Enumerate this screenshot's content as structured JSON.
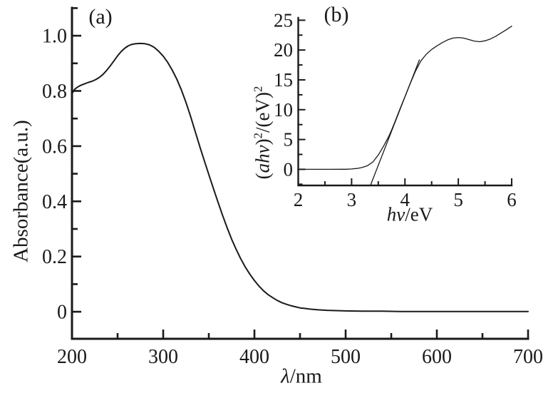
{
  "page": {
    "background": "#ffffff",
    "ink": "#1a1a1a"
  },
  "panels": {
    "main": {
      "tag": "(a)",
      "y_axis_label": "Absorbance(a.u.)",
      "x_axis_label_var": "λ",
      "x_axis_label_rest": "/nm"
    },
    "inset": {
      "tag": "(b)",
      "y_label_open": "(",
      "y_label_var": "ahv",
      "y_label_close": ")",
      "y_label_sup1": "2",
      "y_label_mid": "/(eV)",
      "y_label_sup2": "2",
      "x_axis_label_var": "hv",
      "x_axis_label_rest": "/eV"
    }
  },
  "chart_data": [
    {
      "id": "main",
      "type": "line",
      "title": "(a) UV-Vis absorbance spectrum",
      "xlabel": "λ/nm",
      "ylabel": "Absorbance(a.u.)",
      "xlim": [
        200,
        700
      ],
      "ylim_axis": [
        -0.098,
        1.101
      ],
      "grid": false,
      "legend": "none",
      "x_major_ticks": [
        200,
        300,
        400,
        500,
        600,
        700
      ],
      "x_major_labels": [
        "200",
        "300",
        "400",
        "500",
        "600",
        "700"
      ],
      "x_minor_ticks": [
        250,
        350,
        450,
        550,
        650
      ],
      "y_major_ticks": [
        0,
        0.2,
        0.4,
        0.6,
        0.8,
        1.0
      ],
      "y_major_labels": [
        "0",
        "0.2",
        "0.4",
        "0.6",
        "0.8",
        "1.0"
      ],
      "y_minor_ticks": [
        0.1,
        0.3,
        0.5,
        0.7,
        0.9,
        1.1
      ],
      "series": [
        {
          "name": "absorbance-curve",
          "points": [
            [
              200,
              0.79
            ],
            [
              203,
              0.806
            ],
            [
              206,
              0.814
            ],
            [
              210,
              0.821
            ],
            [
              214,
              0.826
            ],
            [
              218,
              0.831
            ],
            [
              222,
              0.835
            ],
            [
              226,
              0.841
            ],
            [
              230,
              0.849
            ],
            [
              234,
              0.86
            ],
            [
              238,
              0.874
            ],
            [
              242,
              0.891
            ],
            [
              246,
              0.909
            ],
            [
              250,
              0.927
            ],
            [
              254,
              0.943
            ],
            [
              258,
              0.955
            ],
            [
              262,
              0.964
            ],
            [
              266,
              0.969
            ],
            [
              270,
              0.971
            ],
            [
              275,
              0.972
            ],
            [
              280,
              0.971
            ],
            [
              285,
              0.967
            ],
            [
              290,
              0.958
            ],
            [
              295,
              0.944
            ],
            [
              300,
              0.926
            ],
            [
              305,
              0.903
            ],
            [
              310,
              0.875
            ],
            [
              315,
              0.842
            ],
            [
              320,
              0.803
            ],
            [
              325,
              0.758
            ],
            [
              330,
              0.708
            ],
            [
              335,
              0.654
            ],
            [
              340,
              0.6
            ],
            [
              345,
              0.548
            ],
            [
              350,
              0.497
            ],
            [
              355,
              0.447
            ],
            [
              360,
              0.398
            ],
            [
              365,
              0.35
            ],
            [
              370,
              0.305
            ],
            [
              375,
              0.263
            ],
            [
              380,
              0.226
            ],
            [
              385,
              0.192
            ],
            [
              390,
              0.162
            ],
            [
              395,
              0.136
            ],
            [
              400,
              0.113
            ],
            [
              405,
              0.093
            ],
            [
              410,
              0.076
            ],
            [
              415,
              0.062
            ],
            [
              420,
              0.051
            ],
            [
              425,
              0.041
            ],
            [
              430,
              0.033
            ],
            [
              435,
              0.027
            ],
            [
              440,
              0.022
            ],
            [
              445,
              0.018
            ],
            [
              450,
              0.014
            ],
            [
              455,
              0.012
            ],
            [
              460,
              0.01
            ],
            [
              470,
              0.007
            ],
            [
              480,
              0.005
            ],
            [
              490,
              0.004
            ],
            [
              500,
              0.003
            ],
            [
              520,
              0.002
            ],
            [
              540,
              0.002
            ],
            [
              560,
              0.001
            ],
            [
              580,
              0.001
            ],
            [
              600,
              0.001
            ],
            [
              620,
              0.001
            ],
            [
              640,
              0.001
            ],
            [
              660,
              0.001
            ],
            [
              680,
              0.001
            ],
            [
              700,
              0.001
            ]
          ]
        }
      ]
    },
    {
      "id": "inset",
      "type": "line",
      "title": "(b) Tauc plot",
      "xlabel": "hv/eV",
      "ylabel": "(ahv)^2/(eV)^2",
      "xlim": [
        2,
        6
      ],
      "ylim_axis": [
        -2.7,
        25.4
      ],
      "grid": false,
      "legend": "none",
      "x_major_ticks": [
        2,
        3,
        4,
        5,
        6
      ],
      "x_major_labels": [
        "2",
        "3",
        "4",
        "5",
        "6"
      ],
      "x_minor_ticks": [
        2.5,
        3.5,
        4.5,
        5.5
      ],
      "y_major_ticks": [
        0,
        5,
        10,
        15,
        20,
        25
      ],
      "y_major_labels": [
        "0",
        "5",
        "10",
        "15",
        "20",
        "25"
      ],
      "y_minor_ticks": [
        -2.5,
        2.5,
        7.5,
        12.5,
        17.5,
        22.5
      ],
      "series": [
        {
          "name": "tauc-curve",
          "points": [
            [
              2.0,
              0
            ],
            [
              2.2,
              0
            ],
            [
              2.4,
              0
            ],
            [
              2.6,
              0
            ],
            [
              2.8,
              0.01
            ],
            [
              2.9,
              0.02
            ],
            [
              3.0,
              0.06
            ],
            [
              3.1,
              0.15
            ],
            [
              3.2,
              0.32
            ],
            [
              3.3,
              0.62
            ],
            [
              3.4,
              1.25
            ],
            [
              3.5,
              2.4
            ],
            [
              3.6,
              3.9
            ],
            [
              3.7,
              5.6
            ],
            [
              3.75,
              6.6
            ],
            [
              3.8,
              7.7
            ],
            [
              3.9,
              10.0
            ],
            [
              4.0,
              12.2
            ],
            [
              4.1,
              14.4
            ],
            [
              4.2,
              16.5
            ],
            [
              4.3,
              18.2
            ],
            [
              4.4,
              19.3
            ],
            [
              4.5,
              20.1
            ],
            [
              4.6,
              20.7
            ],
            [
              4.7,
              21.25
            ],
            [
              4.8,
              21.7
            ],
            [
              4.9,
              22.0
            ],
            [
              5.0,
              22.1
            ],
            [
              5.1,
              22.0
            ],
            [
              5.2,
              21.75
            ],
            [
              5.3,
              21.5
            ],
            [
              5.4,
              21.4
            ],
            [
              5.5,
              21.55
            ],
            [
              5.6,
              21.85
            ],
            [
              5.7,
              22.3
            ],
            [
              5.8,
              22.85
            ],
            [
              5.9,
              23.4
            ],
            [
              6.0,
              24.0
            ]
          ]
        }
      ],
      "annotations": [
        {
          "name": "band-gap-tangent-line",
          "type": "line",
          "x1": 3.355,
          "y1": -2.65,
          "x2": 4.27,
          "y2": 18.35,
          "x_intercept_at_y0": 3.47
        }
      ]
    }
  ]
}
